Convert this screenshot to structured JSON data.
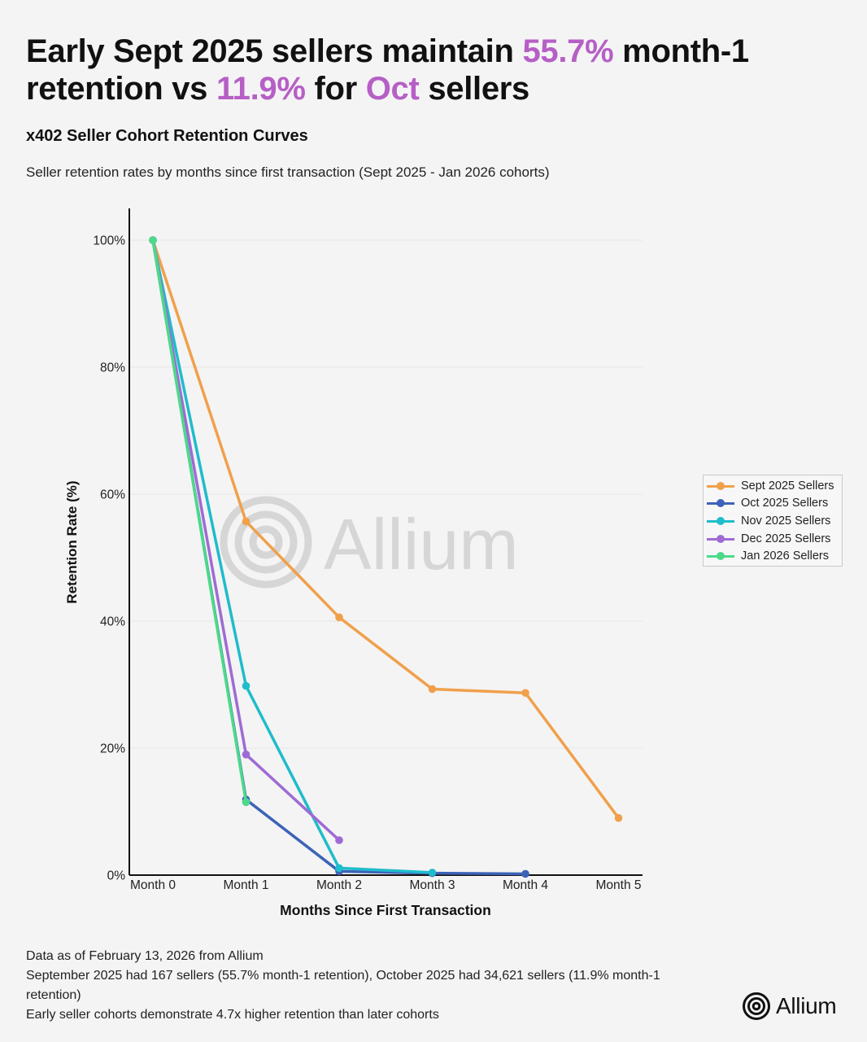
{
  "header": {
    "title_parts": [
      {
        "text": "Early Sept 2025 sellers maintain ",
        "highlight": false
      },
      {
        "text": "55.7%",
        "highlight": true
      },
      {
        "text": " month-1 retention vs ",
        "highlight": false
      },
      {
        "text": "11.9%",
        "highlight": true
      },
      {
        "text": " for ",
        "highlight": false
      },
      {
        "text": "Oct",
        "highlight": true
      },
      {
        "text": " sellers",
        "highlight": false
      }
    ],
    "subtitle": "x402 Seller Cohort Retention Curves",
    "description": "Seller retention rates by months since first transaction (Sept 2025 - Jan 2026 cohorts)"
  },
  "colors": {
    "highlight": "#b65fc6",
    "axis": "#111111",
    "grid": "#e6e6e6",
    "watermark": "#d6d6d6"
  },
  "watermark": {
    "text": "Allium",
    "icon": "allium-logo-icon"
  },
  "chart_data": {
    "type": "line",
    "categories": [
      "Month 0",
      "Month 1",
      "Month 2",
      "Month 3",
      "Month 4",
      "Month 5"
    ],
    "xlabel": "Months Since First Transaction",
    "ylabel": "Retention Rate (%)",
    "ylim": [
      0,
      105
    ],
    "yticks": [
      0,
      20,
      40,
      60,
      80,
      100
    ],
    "ytick_labels": [
      "0%",
      "20%",
      "40%",
      "60%",
      "80%",
      "100%"
    ],
    "grid": true,
    "legend_position": "right",
    "series": [
      {
        "name": "Sept 2025 Sellers",
        "color": "#f0a04b",
        "values": [
          100,
          55.7,
          40.6,
          29.3,
          28.7,
          9.0
        ]
      },
      {
        "name": "Oct 2025 Sellers",
        "color": "#3d63b8",
        "values": [
          100,
          11.9,
          0.6,
          0.3,
          0.2,
          null
        ]
      },
      {
        "name": "Nov 2025 Sellers",
        "color": "#1fbccb",
        "values": [
          100,
          29.8,
          1.1,
          0.4,
          null,
          null
        ]
      },
      {
        "name": "Dec 2025 Sellers",
        "color": "#9e6bd4",
        "values": [
          100,
          19.0,
          5.5,
          null,
          null,
          null
        ]
      },
      {
        "name": "Jan 2026 Sellers",
        "color": "#4cd98a",
        "values": [
          100,
          11.5,
          null,
          null,
          null,
          null
        ]
      }
    ]
  },
  "footer": {
    "notes": [
      "Data as of February 13, 2026 from Allium",
      "September 2025 had 167 sellers (55.7% month-1 retention), October 2025 had 34,621 sellers (11.9% month-1 retention)",
      "Early seller cohorts demonstrate 4.7x higher retention than later cohorts"
    ]
  },
  "brand": {
    "text": "Allium",
    "icon": "allium-logo-icon"
  }
}
